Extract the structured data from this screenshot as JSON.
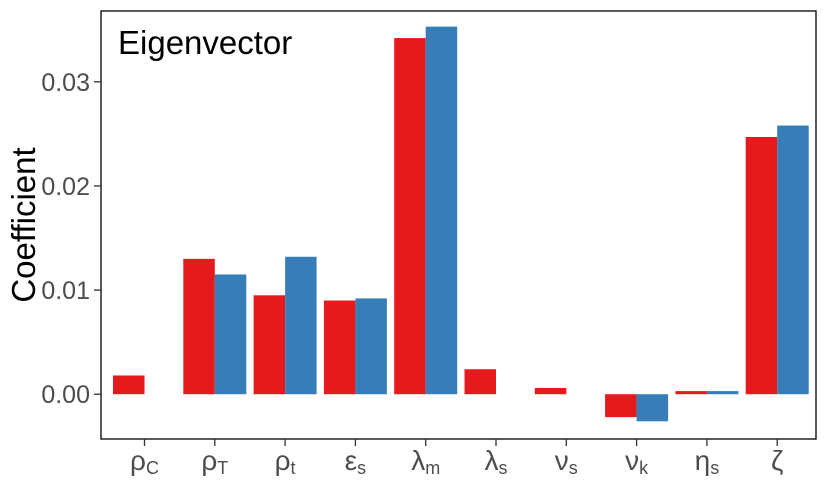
{
  "chart_data": {
    "type": "bar",
    "title": "Eigenvector",
    "xlabel": "",
    "ylabel": "Coefficient",
    "categories": [
      "ρ_C",
      "ρ_T",
      "ρ_t",
      "ε_s",
      "λ_m",
      "λ_s",
      "ν_s",
      "ν_k",
      "η_s",
      "ζ"
    ],
    "category_labels": [
      {
        "base": "ρ",
        "sub": "C"
      },
      {
        "base": "ρ",
        "sub": "T"
      },
      {
        "base": "ρ",
        "sub": "t"
      },
      {
        "base": "ε",
        "sub": "s"
      },
      {
        "base": "λ",
        "sub": "m"
      },
      {
        "base": "λ",
        "sub": "s"
      },
      {
        "base": "ν",
        "sub": "s"
      },
      {
        "base": "ν",
        "sub": "k"
      },
      {
        "base": "η",
        "sub": "s"
      },
      {
        "base": "ζ",
        "sub": ""
      }
    ],
    "series": [
      {
        "color": "#e41a1c",
        "values": [
          0.0018,
          0.013,
          0.0095,
          0.009,
          0.0342,
          0.0024,
          0.0006,
          -0.0022,
          0.0003,
          0.0247
        ]
      },
      {
        "color": "#377eb8",
        "values": [
          0.0,
          0.0115,
          0.0132,
          0.0092,
          0.0353,
          0.0,
          0.0,
          -0.0026,
          0.0003,
          0.0258
        ]
      }
    ],
    "ylim": [
      -0.0043,
      0.0368
    ],
    "yticks": [
      0.0,
      0.01,
      0.02,
      0.03
    ],
    "ytick_labels": [
      "0.00",
      "0.01",
      "0.02",
      "0.03"
    ],
    "grid": false
  }
}
